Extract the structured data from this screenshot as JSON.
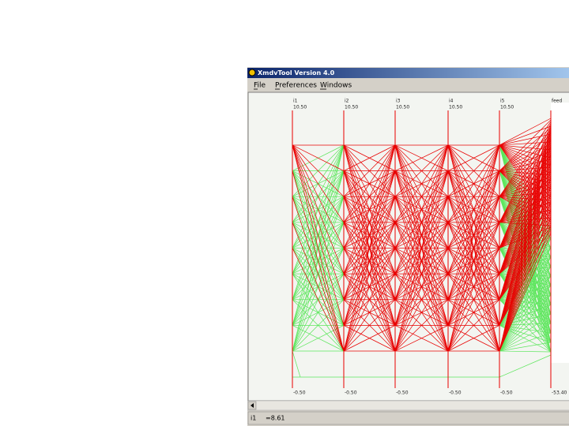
{
  "window": {
    "title": "XmdvTool Version 4.0",
    "menu": [
      "File",
      "Preferences",
      "Windows"
    ]
  },
  "axes": [
    {
      "name": "i1",
      "max": "10.50",
      "min": "-0.50"
    },
    {
      "name": "i2",
      "max": "10.50",
      "min": "-0.50"
    },
    {
      "name": "i3",
      "max": "10.50",
      "min": "-0.50"
    },
    {
      "name": "i4",
      "max": "10.50",
      "min": "-0.50"
    },
    {
      "name": "i5",
      "max": "10.50",
      "min": "-0.50"
    },
    {
      "name": "feed",
      "min": "-53.40"
    }
  ],
  "status": {
    "field": "i1",
    "value": "=8.61"
  }
}
